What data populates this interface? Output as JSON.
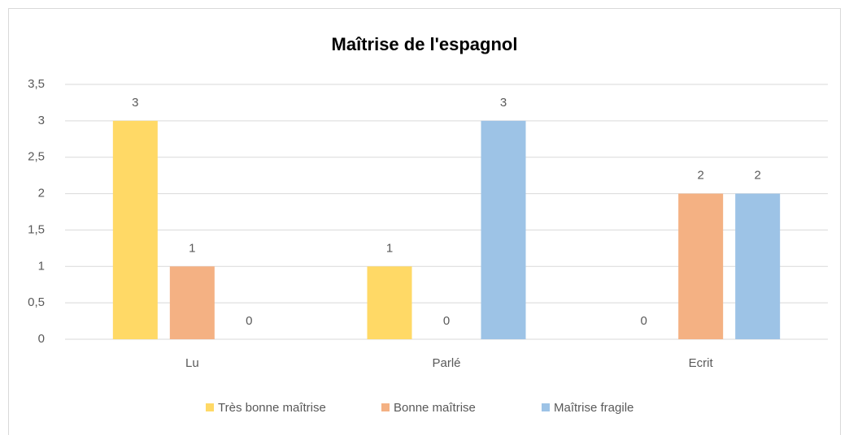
{
  "chart_data": {
    "type": "bar",
    "title": "Maîtrise de l'espagnol",
    "categories": [
      "Lu",
      "Parlé",
      "Ecrit"
    ],
    "series": [
      {
        "name": "Très bonne maîtrise",
        "color": "#FFD966",
        "values": [
          3,
          1,
          0
        ]
      },
      {
        "name": "Bonne maîtrise",
        "color": "#F4B183",
        "values": [
          1,
          0,
          2
        ]
      },
      {
        "name": "Maîtrise fragile",
        "color": "#9DC3E6",
        "values": [
          0,
          3,
          2
        ]
      }
    ],
    "ylim": [
      0,
      3.5
    ],
    "yticks": [
      0,
      {
        "value": 0.5,
        "label": "0,5"
      },
      1,
      {
        "value": 1.5,
        "label": "1,5"
      },
      2,
      {
        "value": 2.5,
        "label": "2,5"
      },
      3,
      {
        "value": 3.5,
        "label": "3,5"
      }
    ],
    "grid": true,
    "legend": "bottom"
  }
}
